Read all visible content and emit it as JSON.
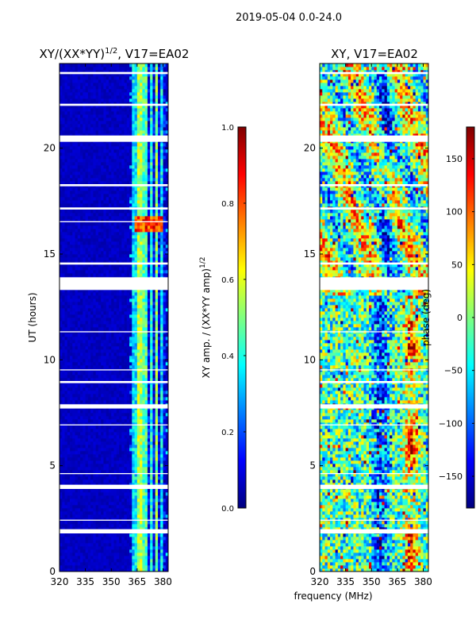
{
  "suptitle": "2019-05-04 0.0-24.0",
  "colors": {
    "jet": [
      "#00007f",
      "#0000ff",
      "#007fff",
      "#00ffff",
      "#7fff7f",
      "#ffff00",
      "#ff7f00",
      "#ff0000",
      "#7f0000"
    ],
    "gap": "#ffffff",
    "frame": "#000000"
  },
  "chart_data": [
    {
      "type": "heatmap",
      "title_main": "XY/(XX*YY)",
      "title_exp": "1/2",
      "title_tail": ", V17=EA02",
      "xlabel": "",
      "ylabel": "UT (hours)",
      "xlim": [
        320,
        383
      ],
      "ylim": [
        0,
        24
      ],
      "xticks": [
        320,
        335,
        350,
        365,
        380
      ],
      "xtick_labels": [
        "320",
        "335",
        "350",
        "365",
        "380"
      ],
      "yticks": [
        0,
        5,
        10,
        15,
        20
      ],
      "ytick_labels": [
        "0",
        "5",
        "10",
        "15",
        "20"
      ],
      "colorbar": {
        "label_main": "XY amp. / (XX*YY amp)",
        "label_exp": "1/2",
        "range": [
          0.0,
          1.0
        ],
        "ticks": [
          0.0,
          0.2,
          0.4,
          0.6,
          0.8,
          1.0
        ],
        "tick_labels": [
          "0.0",
          "0.2",
          "0.4",
          "0.6",
          "0.8",
          "1.0"
        ]
      },
      "gaps_hours": [
        [
          23.5,
          23.6
        ],
        [
          22.0,
          22.1
        ],
        [
          20.3,
          20.6
        ],
        [
          18.2,
          18.3
        ],
        [
          17.1,
          17.2
        ],
        [
          16.5,
          16.55
        ],
        [
          14.5,
          14.6
        ],
        [
          13.3,
          13.9
        ],
        [
          11.3,
          11.35
        ],
        [
          9.5,
          9.55
        ],
        [
          8.9,
          9.0
        ],
        [
          7.7,
          7.9
        ],
        [
          6.9,
          6.95
        ],
        [
          4.6,
          4.65
        ],
        [
          3.9,
          4.1
        ],
        [
          2.4,
          2.45
        ],
        [
          1.8,
          2.0
        ]
      ],
      "notes": "Ratio mostly near 0 (dark blue) from 320–360 MHz; elevated values 0.3–0.6 in vertical bands from 362–381 MHz; red/orange spots near 16.4 h at 365–380 MHz."
    },
    {
      "type": "heatmap",
      "title_main": "XY",
      "title_exp": "",
      "title_tail": ", V17=EA02",
      "xlabel": "frequency (MHz)",
      "ylabel": "",
      "xlim": [
        320,
        383
      ],
      "ylim": [
        0,
        24
      ],
      "xticks": [
        320,
        335,
        350,
        365,
        380
      ],
      "xtick_labels": [
        "320",
        "335",
        "350",
        "365",
        "380"
      ],
      "yticks": [
        0,
        5,
        10,
        15,
        20
      ],
      "ytick_labels": [
        "0",
        "5",
        "10",
        "15",
        "20"
      ],
      "colorbar": {
        "label_main": "phase (deg)",
        "label_exp": "",
        "range": [
          -180,
          180
        ],
        "ticks": [
          -150,
          -100,
          -50,
          0,
          50,
          100,
          150
        ],
        "tick_labels": [
          "−150",
          "−100",
          "−50",
          "0",
          "50",
          "100",
          "150"
        ]
      },
      "gaps_hours": [
        [
          23.5,
          23.6
        ],
        [
          22.0,
          22.1
        ],
        [
          20.3,
          20.6
        ],
        [
          18.2,
          18.3
        ],
        [
          17.1,
          17.2
        ],
        [
          14.5,
          14.6
        ],
        [
          13.3,
          13.9
        ],
        [
          11.3,
          11.35
        ],
        [
          9.5,
          9.55
        ],
        [
          8.9,
          9.0
        ],
        [
          7.7,
          7.9
        ],
        [
          6.9,
          6.95
        ],
        [
          4.6,
          4.65
        ],
        [
          3.9,
          4.1
        ],
        [
          2.4,
          2.45
        ],
        [
          1.8,
          2.0
        ]
      ],
      "notes": "Phase noisy across full range; broad structures with red/orange band near 370–378 MHz from 0–12 h; cyan/yellow mix above 13 h."
    }
  ]
}
